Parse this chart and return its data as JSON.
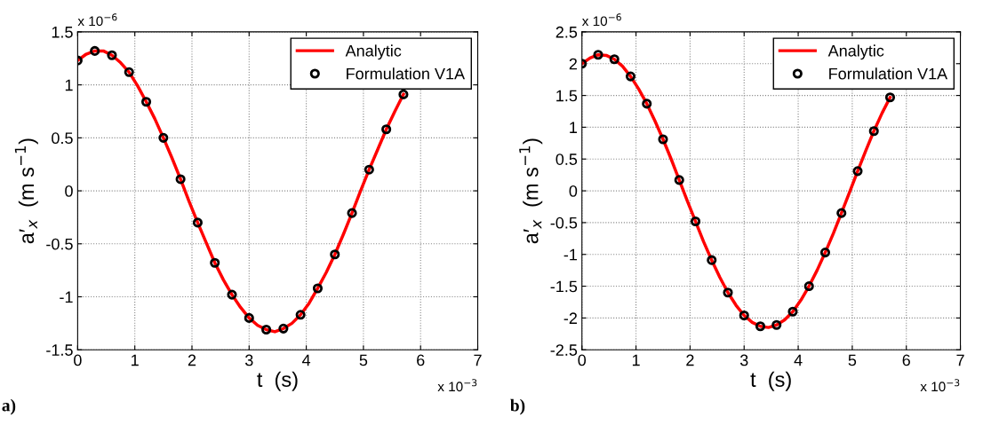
{
  "chart_data": [
    {
      "type": "line",
      "xlabel": "t  (s)",
      "ylabel": "a′$_{x}$  (m s$^{−1}$)",
      "annotations": [
        "x 10$^{−6}$",
        "x 10$^{−3}$",
        "a)"
      ],
      "xlim": [
        0,
        7
      ],
      "xticks": [
        0,
        1,
        2,
        3,
        4,
        5,
        6,
        7
      ],
      "ylim": [
        -1.5,
        1.5
      ],
      "yticks": [
        -1.5,
        -1,
        -0.5,
        0,
        0.5,
        1,
        1.5
      ],
      "grid": true,
      "legend": "top right",
      "series": [
        {
          "name": "Analytic",
          "color": "#ff0000",
          "marker": "none",
          "line_style": "solid",
          "x": [
            0,
            0.15,
            0.3,
            0.45,
            0.6,
            0.75,
            0.9,
            1.05,
            1.2,
            1.35,
            1.5,
            1.65,
            1.8,
            1.95,
            2.1,
            2.25,
            2.4,
            2.55,
            2.7,
            2.85,
            3.0,
            3.15,
            3.3,
            3.45,
            3.6,
            3.75,
            3.9,
            4.05,
            4.2,
            4.35,
            4.5,
            4.65,
            4.8,
            4.95,
            5.1,
            5.25,
            5.4,
            5.55,
            5.7
          ],
          "values": [
            1.23,
            1.29,
            1.32,
            1.32,
            1.28,
            1.21,
            1.12,
            0.99,
            0.84,
            0.68,
            0.5,
            0.31,
            0.11,
            -0.1,
            -0.3,
            -0.49,
            -0.68,
            -0.84,
            -0.98,
            -1.1,
            -1.2,
            -1.27,
            -1.31,
            -1.33,
            -1.3,
            -1.25,
            -1.17,
            -1.06,
            -0.92,
            -0.77,
            -0.6,
            -0.41,
            -0.21,
            0.0,
            0.2,
            0.39,
            0.58,
            0.75,
            0.91
          ]
        },
        {
          "name": "Formulation V1A",
          "type": "scatter",
          "color": "#000000",
          "marker": "circle",
          "x": [
            0,
            0.3,
            0.6,
            0.9,
            1.2,
            1.5,
            1.8,
            2.1,
            2.4,
            2.7,
            3.0,
            3.3,
            3.6,
            3.9,
            4.2,
            4.5,
            4.8,
            5.1,
            5.4,
            5.7
          ],
          "values": [
            1.23,
            1.32,
            1.28,
            1.12,
            0.84,
            0.5,
            0.11,
            -0.3,
            -0.68,
            -0.98,
            -1.2,
            -1.31,
            -1.3,
            -1.17,
            -0.92,
            -0.6,
            -0.21,
            0.2,
            0.58,
            0.91
          ]
        }
      ]
    },
    {
      "type": "line",
      "xlabel": "t  (s)",
      "ylabel": "a′$_{x}$  (m s$^{−1}$)",
      "annotations": [
        "x 10$^{−6}$",
        "x 10$^{−3}$",
        "b)"
      ],
      "xlim": [
        0,
        7
      ],
      "xticks": [
        0,
        1,
        2,
        3,
        4,
        5,
        6,
        7
      ],
      "ylim": [
        -2.5,
        2.5
      ],
      "yticks": [
        -2.5,
        -2,
        -1.5,
        -1,
        -0.5,
        0,
        0.5,
        1,
        1.5,
        2,
        2.5
      ],
      "grid": true,
      "legend": "top right",
      "series": [
        {
          "name": "Analytic",
          "color": "#ff0000",
          "marker": "none",
          "line_style": "solid",
          "x": [
            0,
            0.15,
            0.3,
            0.45,
            0.6,
            0.75,
            0.9,
            1.05,
            1.2,
            1.35,
            1.5,
            1.65,
            1.8,
            1.95,
            2.1,
            2.25,
            2.4,
            2.55,
            2.7,
            2.85,
            3.0,
            3.15,
            3.3,
            3.45,
            3.6,
            3.75,
            3.9,
            4.05,
            4.2,
            4.35,
            4.5,
            4.65,
            4.8,
            4.95,
            5.1,
            5.25,
            5.4,
            5.55,
            5.7
          ],
          "values": [
            2.0,
            2.09,
            2.14,
            2.13,
            2.07,
            1.96,
            1.8,
            1.6,
            1.37,
            1.1,
            0.81,
            0.5,
            0.17,
            -0.16,
            -0.48,
            -0.8,
            -1.09,
            -1.36,
            -1.6,
            -1.8,
            -1.96,
            -2.07,
            -2.13,
            -2.15,
            -2.11,
            -2.03,
            -1.9,
            -1.72,
            -1.5,
            -1.25,
            -0.97,
            -0.67,
            -0.35,
            -0.02,
            0.31,
            0.63,
            0.94,
            1.22,
            1.47
          ]
        },
        {
          "name": "Formulation V1A",
          "type": "scatter",
          "color": "#000000",
          "marker": "circle",
          "x": [
            0,
            0.3,
            0.6,
            0.9,
            1.2,
            1.5,
            1.8,
            2.1,
            2.4,
            2.7,
            3.0,
            3.3,
            3.6,
            3.9,
            4.2,
            4.5,
            4.8,
            5.1,
            5.4,
            5.7
          ],
          "values": [
            2.0,
            2.14,
            2.07,
            1.8,
            1.37,
            0.81,
            0.17,
            -0.48,
            -1.09,
            -1.6,
            -1.96,
            -2.13,
            -2.11,
            -1.9,
            -1.5,
            -0.97,
            -0.35,
            0.31,
            0.94,
            1.47
          ]
        }
      ]
    }
  ]
}
